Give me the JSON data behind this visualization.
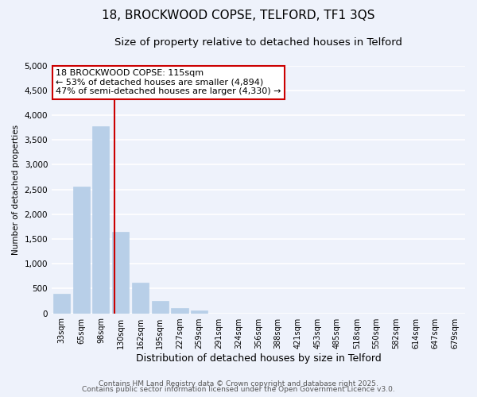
{
  "title": "18, BROCKWOOD COPSE, TELFORD, TF1 3QS",
  "subtitle": "Size of property relative to detached houses in Telford",
  "xlabel": "Distribution of detached houses by size in Telford",
  "ylabel": "Number of detached properties",
  "bar_labels": [
    "33sqm",
    "65sqm",
    "98sqm",
    "130sqm",
    "162sqm",
    "195sqm",
    "227sqm",
    "259sqm",
    "291sqm",
    "324sqm",
    "356sqm",
    "388sqm",
    "421sqm",
    "453sqm",
    "485sqm",
    "518sqm",
    "550sqm",
    "582sqm",
    "614sqm",
    "647sqm",
    "679sqm"
  ],
  "bar_values": [
    390,
    2550,
    3780,
    1650,
    620,
    250,
    100,
    50,
    0,
    0,
    0,
    0,
    0,
    0,
    0,
    0,
    0,
    0,
    0,
    0,
    0
  ],
  "bar_color": "#b8cfe8",
  "bar_edgecolor": "#b8cfe8",
  "vline_x": 2.67,
  "vline_color": "#cc0000",
  "annotation_text": "18 BROCKWOOD COPSE: 115sqm\n← 53% of detached houses are smaller (4,894)\n47% of semi-detached houses are larger (4,330) →",
  "annotation_box_color": "#ffffff",
  "annotation_box_edgecolor": "#cc0000",
  "ylim": [
    0,
    5000
  ],
  "yticks": [
    0,
    500,
    1000,
    1500,
    2000,
    2500,
    3000,
    3500,
    4000,
    4500,
    5000
  ],
  "background_color": "#eef2fb",
  "plot_bg_color": "#eef2fb",
  "grid_color": "#ffffff",
  "footer_line1": "Contains HM Land Registry data © Crown copyright and database right 2025.",
  "footer_line2": "Contains public sector information licensed under the Open Government Licence v3.0.",
  "title_fontsize": 11,
  "subtitle_fontsize": 9.5,
  "annotation_fontsize": 8,
  "footer_fontsize": 6.5
}
